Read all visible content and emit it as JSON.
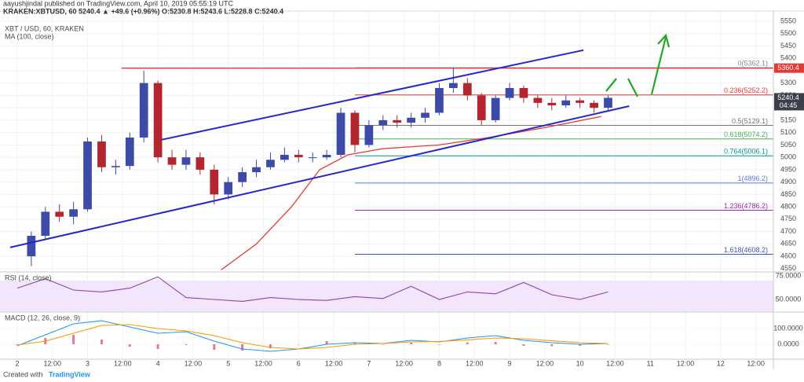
{
  "header": {
    "publisher": "aayushjindal published on TradingView.com, April 10, 2019 05:55:19 UTC",
    "symbol_line": "KRAKEN:XBTUSD, 60  5240.4 ▲ +49.6 (+0.96%)  O:5230.8  H:5243.6  L:5228.8  C:5240.4"
  },
  "footer": {
    "created": "Created with",
    "brand": "TradingView"
  },
  "chart_data": [
    {
      "type": "candlestick",
      "title": "XBT / USD, 60, KRAKEN",
      "x": [
        2.2,
        2.4,
        2.6,
        2.8,
        3.0,
        3.2,
        3.4,
        3.6,
        3.8,
        4.0,
        4.2,
        4.4,
        4.6,
        4.8,
        5.0,
        5.2,
        5.4,
        5.6,
        5.8,
        6.0,
        6.2,
        6.4,
        6.6,
        6.8,
        7.0,
        7.2,
        7.4,
        7.6,
        7.8,
        8.0,
        8.2,
        8.4,
        8.6,
        8.8,
        9.0,
        9.2,
        9.4,
        9.6,
        9.8,
        10.0,
        10.2,
        10.4
      ],
      "open": [
        4600,
        4683,
        4780,
        4760,
        4790,
        5064,
        4960,
        4965,
        5080,
        5300,
        5000,
        4970,
        5000,
        4950,
        4850,
        4900,
        4940,
        4960,
        4990,
        5010,
        5000,
        5000,
        5010,
        5180,
        5050,
        5130,
        5150,
        5140,
        5160,
        5180,
        5280,
        5300,
        5250,
        5150,
        5240,
        5280,
        5240,
        5220,
        5210,
        5230,
        5220,
        5200
      ],
      "high": [
        4700,
        4800,
        4810,
        4820,
        5080,
        5090,
        4990,
        5100,
        5350,
        5310,
        5030,
        5030,
        5020,
        4970,
        4920,
        4960,
        4990,
        5020,
        5040,
        5030,
        5020,
        5030,
        5200,
        5190,
        5150,
        5170,
        5170,
        5180,
        5200,
        5300,
        5362.1,
        5320,
        5260,
        5250,
        5300,
        5290,
        5250,
        5240,
        5250,
        5240,
        5230,
        5250
      ],
      "low": [
        4560,
        4670,
        4740,
        4730,
        4780,
        4940,
        4930,
        4950,
        5060,
        4980,
        4950,
        4950,
        4930,
        4810,
        4830,
        4880,
        4920,
        4950,
        4980,
        4980,
        4980,
        4990,
        5000,
        5020,
        5040,
        5110,
        5120,
        5120,
        5140,
        5170,
        5260,
        5230,
        5130,
        5140,
        5230,
        5220,
        5200,
        5190,
        5200,
        5200,
        5180,
        5190
      ],
      "close": [
        4683,
        4780,
        4760,
        4790,
        5064,
        4960,
        4965,
        5080,
        5300,
        5000,
        4970,
        5000,
        4950,
        4850,
        4900,
        4940,
        4960,
        4990,
        5010,
        5000,
        5000,
        5010,
        5180,
        5050,
        5130,
        5150,
        5140,
        5160,
        5180,
        5280,
        5300,
        5250,
        5150,
        5240,
        5280,
        5240,
        5220,
        5210,
        5230,
        5220,
        5200,
        5240.4
      ],
      "up_color": "#3d4aa8",
      "down_color": "#b3262f",
      "series": [
        {
          "name": "MA (100, close)",
          "color": "#e53935",
          "x": [
            4.9,
            5.4,
            5.9,
            6.3,
            6.7,
            7.2,
            8.0,
            8.7,
            9.5,
            10.3
          ],
          "values": [
            4545,
            4650,
            4800,
            4950,
            5010,
            5035,
            5050,
            5080,
            5120,
            5165
          ]
        }
      ],
      "fib_from": 6.8,
      "fib_levels": [
        {
          "value": 5362.1,
          "label": "0(5362.1)",
          "color": "#8a8a8a"
        },
        {
          "value": 5252.2,
          "label": "0.236(5252.2)",
          "color": "#e53935"
        },
        {
          "value": 5129.1,
          "label": "0.5(5129.1)",
          "color": "#777777"
        },
        {
          "value": 5074.2,
          "label": "0.618(5074.2)",
          "color": "#4caf50"
        },
        {
          "value": 5006.1,
          "label": "0.764(5006.1)",
          "color": "#009688"
        },
        {
          "value": 4896.2,
          "label": "1(4896.2)",
          "color": "#5c7ed6"
        },
        {
          "value": 4786.2,
          "label": "1.236(4786.2)",
          "color": "#9c27b0"
        },
        {
          "value": 4608.2,
          "label": "1.618(4608.2)",
          "color": "#3f51b5"
        }
      ],
      "trend_lines": [
        {
          "color": "#2626c9",
          "points": [
            [
              4.05,
              5071
            ],
            [
              10.05,
              5433
            ]
          ]
        },
        {
          "color": "#2626c9",
          "points": [
            [
              1.9,
              4636
            ],
            [
              10.7,
              5207
            ]
          ]
        }
      ],
      "price_line": {
        "value": 5360.4,
        "x_start": 3.48,
        "color": "#e53935"
      },
      "last_price": 5240.4,
      "countdown": "04:45",
      "xlim": [
        1.755,
        12.75
      ],
      "ylim": [
        4540,
        5588
      ],
      "yticks": [
        4550,
        4600,
        4650,
        4700,
        4750,
        4800,
        4850,
        4900,
        4950,
        5000,
        5050,
        5100,
        5150,
        5200,
        5250,
        5300,
        5350,
        5400,
        5450,
        5500,
        5550
      ],
      "grid": true
    },
    {
      "type": "line",
      "title": "RSI (14, close)",
      "band": [
        30,
        70
      ],
      "band_color": "#f1e6fb",
      "series": [
        {
          "color": "#8e44ad",
          "x": [
            2.0,
            2.4,
            2.8,
            3.2,
            3.6,
            4.0,
            4.4,
            4.8,
            5.2,
            5.6,
            6.0,
            6.4,
            6.8,
            7.2,
            7.6,
            8.0,
            8.4,
            8.8,
            9.2,
            9.6,
            10.0,
            10.4
          ],
          "values": [
            62,
            72,
            60,
            58,
            62,
            74,
            52,
            50,
            48,
            52,
            50,
            49,
            53,
            51,
            64,
            50,
            58,
            56,
            68,
            55,
            50,
            58
          ]
        }
      ],
      "xlim": [
        1.755,
        12.75
      ],
      "ylim": [
        37.5,
        79.2
      ],
      "yticks": [
        {
          "value": 75,
          "label": "75.0000"
        },
        {
          "value": 50,
          "label": "50.0000"
        }
      ]
    },
    {
      "type": "line",
      "title": "MACD (12, 26, close, 9)",
      "histogram": {
        "color": "#e07a9c",
        "x": [
          2.0,
          2.4,
          2.8,
          3.2,
          3.6,
          4.0,
          4.4,
          4.8,
          5.2,
          5.6,
          6.0,
          6.4,
          6.8,
          7.2,
          7.6,
          8.0,
          8.4,
          8.8,
          9.2,
          9.6,
          10.0,
          10.4
        ],
        "values": [
          -5,
          40,
          60,
          30,
          -15,
          -30,
          -5,
          -35,
          -40,
          -25,
          0,
          20,
          10,
          0,
          10,
          -3,
          12,
          15,
          -10,
          -12,
          -10,
          0
        ]
      },
      "series": [
        {
          "color": "#2196f3",
          "x": [
            2.0,
            2.4,
            2.8,
            3.2,
            3.6,
            4.0,
            4.4,
            4.8,
            5.2,
            5.6,
            6.0,
            6.4,
            6.8,
            7.2,
            7.6,
            8.0,
            8.4,
            8.8,
            9.2,
            9.6,
            10.0,
            10.4
          ],
          "values": [
            -10,
            60,
            130,
            150,
            110,
            70,
            80,
            20,
            -30,
            -45,
            -30,
            0,
            10,
            5,
            25,
            15,
            40,
            55,
            25,
            10,
            0,
            5
          ]
        },
        {
          "color": "#ff9800",
          "x": [
            2.0,
            2.4,
            2.8,
            3.2,
            3.6,
            4.0,
            4.4,
            4.8,
            5.2,
            5.6,
            6.0,
            6.4,
            6.8,
            7.2,
            7.6,
            8.0,
            8.4,
            8.8,
            9.2,
            9.6,
            10.0,
            10.4
          ],
          "values": [
            -5,
            20,
            70,
            120,
            125,
            100,
            85,
            55,
            10,
            -20,
            -30,
            -20,
            0,
            5,
            15,
            18,
            28,
            40,
            35,
            22,
            10,
            5
          ]
        }
      ],
      "xlim": [
        1.755,
        12.75
      ],
      "ylim": [
        -90,
        200
      ],
      "yticks": [
        {
          "value": 100,
          "label": "100.0000"
        },
        {
          "value": 0,
          "label": "0.0000"
        }
      ],
      "xticks": [
        {
          "value": 2,
          "label": "2"
        },
        {
          "value": 2.5,
          "label": "12:00"
        },
        {
          "value": 3,
          "label": "3"
        },
        {
          "value": 3.5,
          "label": "12:00"
        },
        {
          "value": 4,
          "label": "4"
        },
        {
          "value": 4.5,
          "label": "12:00"
        },
        {
          "value": 5,
          "label": "5"
        },
        {
          "value": 5.5,
          "label": "12:00"
        },
        {
          "value": 6,
          "label": "6"
        },
        {
          "value": 6.5,
          "label": "12:00"
        },
        {
          "value": 7,
          "label": "7"
        },
        {
          "value": 7.5,
          "label": "12:00"
        },
        {
          "value": 8,
          "label": "8"
        },
        {
          "value": 8.5,
          "label": "12:00"
        },
        {
          "value": 9,
          "label": "9"
        },
        {
          "value": 9.5,
          "label": "12:00"
        },
        {
          "value": 10,
          "label": "10"
        },
        {
          "value": 10.5,
          "label": "12:00"
        },
        {
          "value": 11,
          "label": "11"
        },
        {
          "value": 11.5,
          "label": "12:00"
        },
        {
          "value": 12,
          "label": "12"
        },
        {
          "value": 12.5,
          "label": "12:00"
        }
      ]
    }
  ]
}
